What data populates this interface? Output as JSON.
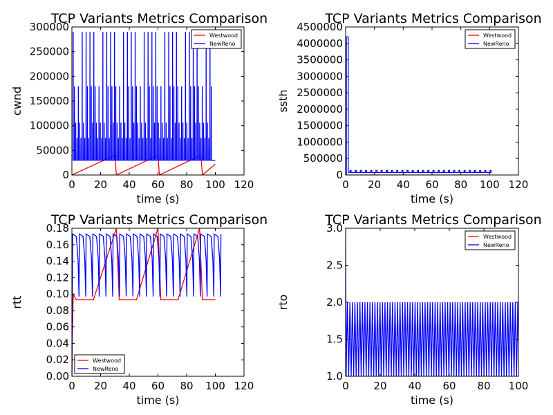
{
  "figure": {
    "background": "#ffffff",
    "colors": {
      "Westwood": "#ff0000",
      "NewReno": "#0000ff"
    }
  },
  "chart_data": [
    {
      "type": "line",
      "title": "TCP Variants Metrics Comparison",
      "xlabel": "time (s)",
      "ylabel": "cwnd",
      "xlim": [
        0,
        120
      ],
      "ylim": [
        0,
        300000
      ],
      "xticks": [
        "0",
        "20",
        "40",
        "60",
        "80",
        "100",
        "120"
      ],
      "yticks": [
        "0",
        "50000",
        "100000",
        "150000",
        "200000",
        "250000",
        "300000"
      ],
      "legend": "top-right",
      "grid": false,
      "series": [
        {
          "name": "Westwood",
          "color": "#ff0000",
          "pattern": "sawtooth-ramp",
          "points": [
            [
              0,
              0
            ],
            [
              30,
              40000
            ],
            [
              31,
              0
            ],
            [
              60,
              40000
            ],
            [
              61,
              0
            ],
            [
              90,
              40000
            ],
            [
              91,
              0
            ],
            [
              100,
              22000
            ]
          ]
        },
        {
          "name": "NewReno",
          "color": "#0000ff",
          "pattern": "spike-train",
          "x_range": [
            0.5,
            100
          ],
          "period_s": 3.6,
          "peaks": [
            290000,
            180000,
            106000,
            75000
          ],
          "floor": 30000
        }
      ]
    },
    {
      "type": "line",
      "title": "TCP Variants Metrics Comparison",
      "xlabel": "time (s)",
      "ylabel": "ssth",
      "xlim": [
        0,
        120
      ],
      "ylim": [
        0,
        4500000
      ],
      "xticks": [
        "0",
        "20",
        "40",
        "60",
        "80",
        "100",
        "120"
      ],
      "yticks": [
        "0",
        "500000",
        "1000000",
        "1500000",
        "2000000",
        "2500000",
        "3000000",
        "3500000",
        "4000000",
        "4500000"
      ],
      "legend": "top-right",
      "grid": false,
      "series": [
        {
          "name": "Westwood",
          "color": "#ff0000",
          "pattern": "flat",
          "points": [
            [
              0,
              0
            ],
            [
              100,
              0
            ]
          ]
        },
        {
          "name": "NewReno",
          "color": "#0000ff",
          "pattern": "initial-then-square",
          "initial": {
            "x": [
              0.5,
              1.8
            ],
            "value": 4200000
          },
          "period_s": 3.6,
          "high": 140000,
          "low": 75000,
          "x_range": [
            1.8,
            100
          ]
        }
      ]
    },
    {
      "type": "line",
      "title": "TCP Variants Metrics Comparison",
      "xlabel": "time (s)",
      "ylabel": "rtt",
      "xlim": [
        0,
        120
      ],
      "ylim": [
        0,
        0.18
      ],
      "xticks": [
        "0",
        "20",
        "40",
        "60",
        "80",
        "100",
        "120"
      ],
      "yticks": [
        "0.00",
        "0.02",
        "0.04",
        "0.06",
        "0.08",
        "0.10",
        "0.12",
        "0.14",
        "0.16",
        "0.18"
      ],
      "legend": "bottom-left",
      "grid": false,
      "series": [
        {
          "name": "Westwood",
          "color": "#ff0000",
          "pattern": "ramp-cycles",
          "points": [
            [
              0,
              0.0
            ],
            [
              0.3,
              0.05
            ],
            [
              1,
              0.1
            ],
            [
              3,
              0.093
            ],
            [
              15,
              0.093
            ],
            [
              31,
              0.18
            ],
            [
              33,
              0.093
            ],
            [
              45,
              0.093
            ],
            [
              60,
              0.18
            ],
            [
              62,
              0.093
            ],
            [
              74,
              0.093
            ],
            [
              89,
              0.18
            ],
            [
              91,
              0.093
            ],
            [
              100,
              0.093
            ]
          ]
        },
        {
          "name": "NewReno",
          "color": "#0000ff",
          "pattern": "decay-cycles",
          "x_range": [
            0.5,
            100
          ],
          "period_s": 4.7,
          "high": 0.173,
          "low": 0.097
        }
      ]
    },
    {
      "type": "line",
      "title": "TCP Variants Metrics Comparison",
      "xlabel": "time (s)",
      "ylabel": "rto",
      "xlim": [
        0,
        100
      ],
      "ylim": [
        1.0,
        3.0
      ],
      "xticks": [
        "0",
        "20",
        "40",
        "60",
        "80",
        "100"
      ],
      "yticks": [
        "1.0",
        "1.5",
        "2.0",
        "2.5",
        "3.0"
      ],
      "legend": "top-right",
      "grid": false,
      "series": [
        {
          "name": "Westwood",
          "color": "#ff0000",
          "pattern": "flat",
          "points": [
            [
              0,
              1.0
            ],
            [
              100,
              1.0
            ]
          ]
        },
        {
          "name": "NewReno",
          "color": "#0000ff",
          "pattern": "sawtooth",
          "x_range": [
            0,
            100
          ],
          "start": 3.0,
          "period_s": 1.45,
          "high": 2.0,
          "low": 1.0
        }
      ]
    }
  ]
}
